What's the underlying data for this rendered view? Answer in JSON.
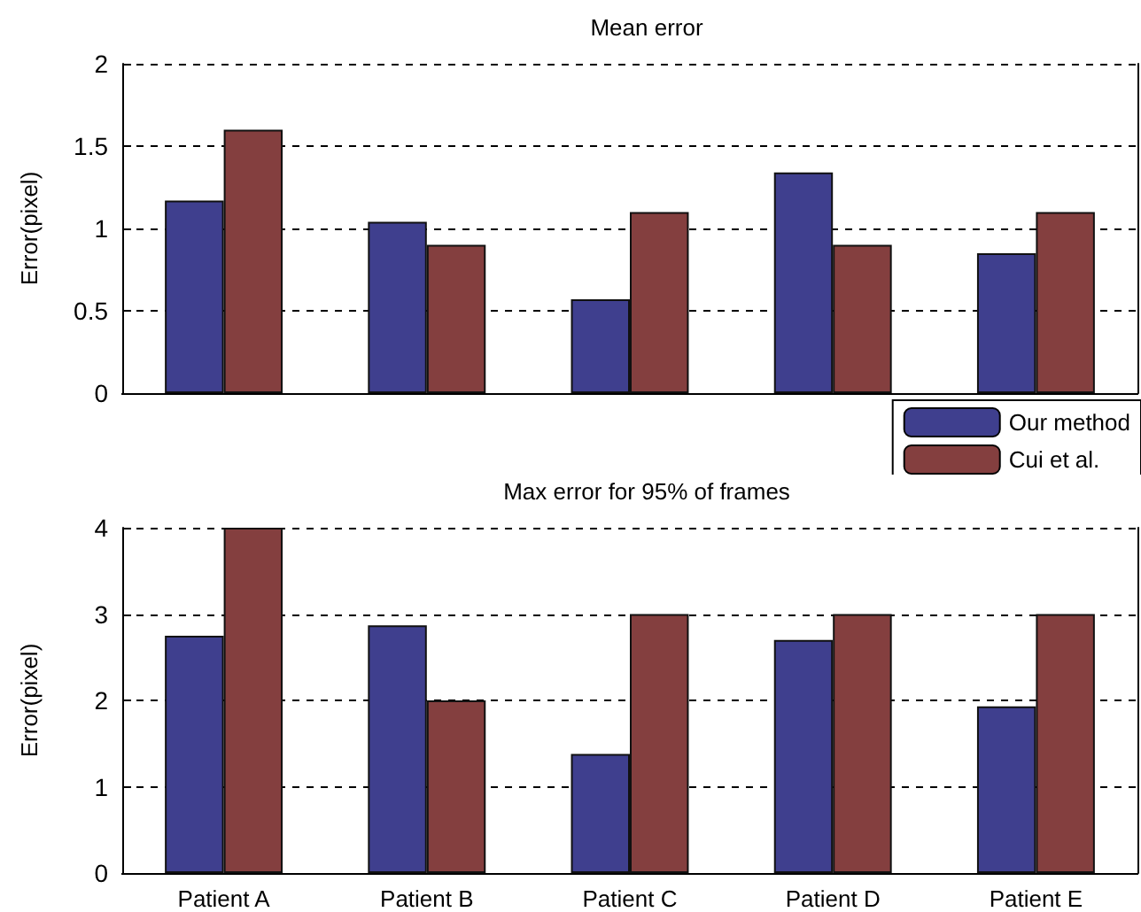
{
  "chart_data": [
    {
      "type": "bar",
      "title": "Mean error",
      "ylabel": "Error(pixel)",
      "categories": [
        null,
        null,
        null,
        null,
        null
      ],
      "series": [
        {
          "name": "Our method",
          "color": "#3f3f8e",
          "values": [
            1.17,
            1.04,
            0.57,
            1.34,
            0.85
          ]
        },
        {
          "name": "Cui et al.",
          "color": "#843f3f",
          "values": [
            1.6,
            0.9,
            1.1,
            0.9,
            1.1
          ]
        }
      ],
      "ylim": [
        0,
        2
      ],
      "yticks": [
        0,
        0.5,
        1,
        1.5,
        2
      ],
      "grid": "y",
      "legend": "bottom right",
      "tick_labels": "y"
    },
    {
      "type": "bar",
      "title": "Max error for 95% of frames",
      "ylabel": "Error(pixel)",
      "categories": [
        "Patient A",
        "Patient B",
        "Patient C",
        "Patient D",
        "Patient E"
      ],
      "series": [
        {
          "color": "#3f3f8e",
          "values": [
            2.75,
            2.87,
            1.38,
            2.7,
            1.93
          ]
        },
        {
          "color": "#843f3f",
          "values": [
            4,
            2,
            3,
            3,
            3
          ]
        }
      ],
      "ylim": [
        0,
        4
      ],
      "yticks": [
        0,
        1,
        2,
        3,
        4
      ],
      "grid": "y"
    }
  ]
}
